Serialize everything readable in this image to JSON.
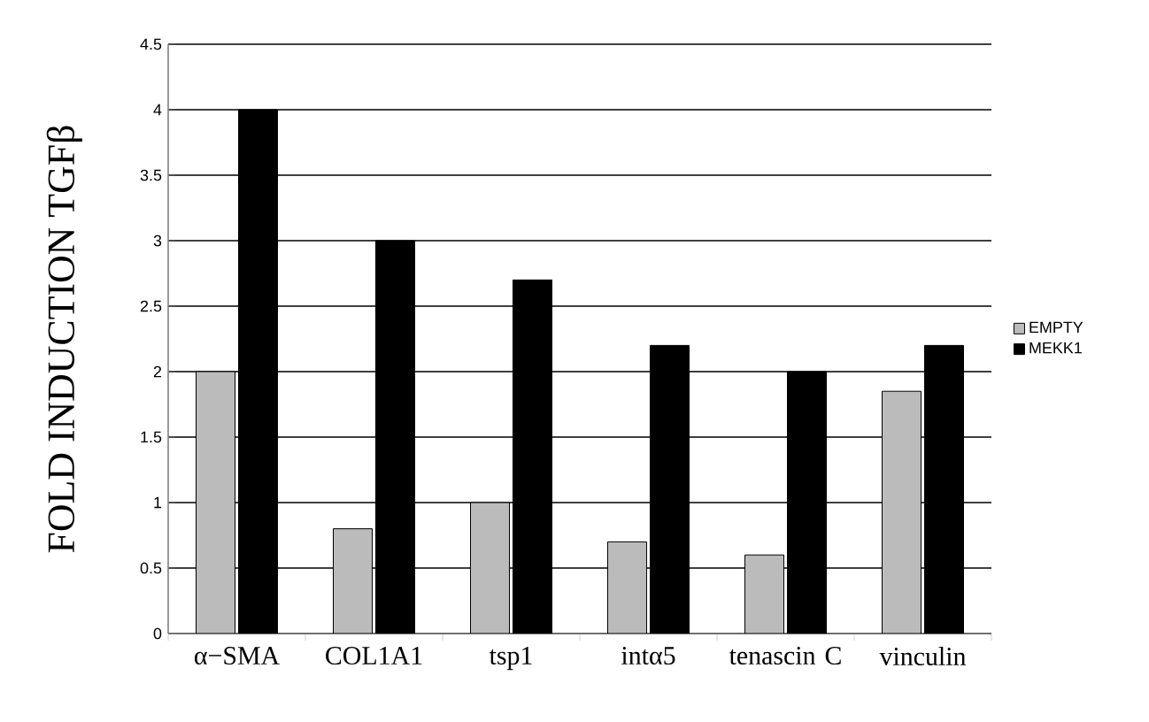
{
  "chart_data": {
    "type": "bar",
    "ylabel": "FOLD INDUCTION TGFβ",
    "categories": [
      "α−SMA",
      "COL1A1",
      "tsp1",
      "intα5",
      "tenascin C",
      "vinculin"
    ],
    "series": [
      {
        "name": "EMPTY",
        "color": "#bbbbbb",
        "values": [
          2,
          0.8,
          1,
          0.7,
          0.6,
          1.85
        ]
      },
      {
        "name": "MEKK1",
        "color": "#000000",
        "values": [
          4,
          3,
          2.7,
          2.2,
          2,
          2.2
        ]
      }
    ],
    "ylim": [
      0,
      4.5
    ],
    "yticks": [
      0,
      0.5,
      1,
      1.5,
      2,
      2.5,
      3,
      3.5,
      4,
      4.5
    ],
    "grid": "y",
    "legend": "right"
  }
}
